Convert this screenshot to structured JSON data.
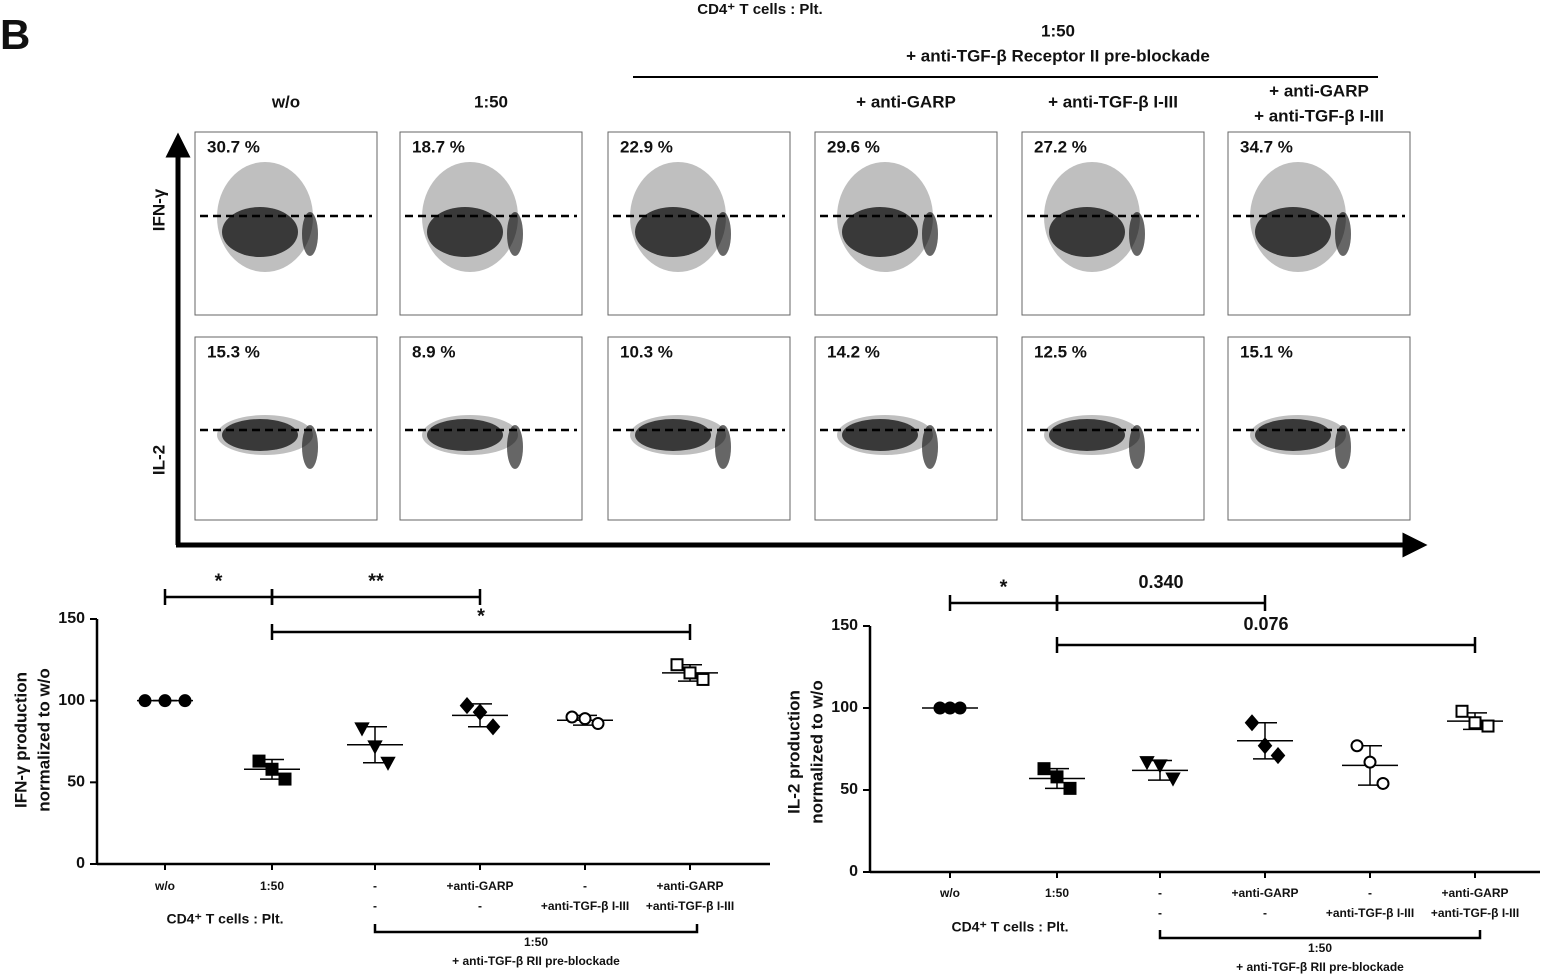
{
  "panel_label": "B",
  "flow": {
    "title": "CD4⁺ T cells : Plt.",
    "group_ratio": "1:50",
    "group_label": "+ anti-TGF-β Receptor II pre-blockade",
    "column_headers": [
      [
        "w/o"
      ],
      [
        "1:50"
      ],
      [],
      [
        "+ anti-GARP"
      ],
      [
        "+ anti-TGF-β I-III"
      ],
      [
        "+ anti-GARP",
        "+ anti-TGF-β I-III"
      ]
    ],
    "rows": [
      {
        "label": "IFN-γ",
        "percents": [
          "30.7 %",
          "18.7 %",
          "22.9 %",
          "29.6 %",
          "27.2 %",
          "34.7 %"
        ]
      },
      {
        "label": "IL-2",
        "percents": [
          "15.3 %",
          "8.9 %",
          "10.3 %",
          "14.2 %",
          "12.5 %",
          "15.1 %"
        ]
      }
    ]
  },
  "chart_data": [
    {
      "type": "dot",
      "y_label": [
        "IFN-γ production",
        "normalized to w/o"
      ],
      "ylim": [
        0,
        150
      ],
      "yticks": [
        0,
        50,
        100,
        150
      ],
      "categories": [
        "w/o",
        "1:50",
        "-",
        "+anti-GARP",
        "-",
        "+anti-GARP"
      ],
      "categories_line2": [
        null,
        null,
        "-",
        "-",
        "+anti-TGF-β I-III",
        "+anti-TGF-β I-III"
      ],
      "x_row_label": "CD4⁺ T cells : Plt.",
      "bracket_ratio": "1:50",
      "bracket_label": "+ anti-TGF-β  RII pre-blockade",
      "groups": [
        {
          "marker": "circle",
          "filled": true,
          "values": [
            100,
            100,
            100
          ],
          "mean": 100,
          "sd": 0
        },
        {
          "marker": "square",
          "filled": true,
          "values": [
            63,
            58,
            52
          ],
          "mean": 58,
          "sd": 6
        },
        {
          "marker": "triangle",
          "filled": true,
          "values": [
            83,
            72,
            62
          ],
          "mean": 73,
          "sd": 11
        },
        {
          "marker": "diamond",
          "filled": true,
          "values": [
            97,
            93,
            84
          ],
          "mean": 91,
          "sd": 7
        },
        {
          "marker": "circle",
          "filled": false,
          "values": [
            90,
            89,
            86
          ],
          "mean": 88,
          "sd": 3
        },
        {
          "marker": "square",
          "filled": false,
          "values": [
            122,
            117,
            113
          ],
          "mean": 117,
          "sd": 5
        }
      ],
      "significance": [
        {
          "from": 0,
          "to": 1,
          "label": "*"
        },
        {
          "from": 1,
          "to": 3,
          "label": "**"
        },
        {
          "from": 1,
          "to": 5,
          "label": "*"
        }
      ]
    },
    {
      "type": "dot",
      "y_label": [
        "IL-2 production",
        "normalized to w/o"
      ],
      "ylim": [
        0,
        150
      ],
      "yticks": [
        0,
        50,
        100,
        150
      ],
      "categories": [
        "w/o",
        "1:50",
        "-",
        "+anti-GARP",
        "-",
        "+anti-GARP"
      ],
      "categories_line2": [
        null,
        null,
        "-",
        "-",
        "+anti-TGF-β I-III",
        "+anti-TGF-β I-III"
      ],
      "x_row_label": "CD4⁺ T cells : Plt.",
      "bracket_ratio": "1:50",
      "bracket_label": "+ anti-TGF-β  RII pre-blockade",
      "groups": [
        {
          "marker": "circle",
          "filled": true,
          "values": [
            100,
            100,
            100
          ],
          "mean": 100,
          "sd": 0
        },
        {
          "marker": "square",
          "filled": true,
          "values": [
            63,
            58,
            51
          ],
          "mean": 57,
          "sd": 6
        },
        {
          "marker": "triangle",
          "filled": true,
          "values": [
            67,
            65,
            57
          ],
          "mean": 62,
          "sd": 6
        },
        {
          "marker": "diamond",
          "filled": true,
          "values": [
            91,
            77,
            71
          ],
          "mean": 80,
          "sd": 11
        },
        {
          "marker": "circle",
          "filled": false,
          "values": [
            77,
            67,
            54
          ],
          "mean": 65,
          "sd": 12
        },
        {
          "marker": "square",
          "filled": false,
          "values": [
            98,
            91,
            89
          ],
          "mean": 92,
          "sd": 5
        }
      ],
      "significance": [
        {
          "from": 0,
          "to": 1,
          "label": "*"
        },
        {
          "from": 1,
          "to": 3,
          "label": "0.340"
        },
        {
          "from": 1,
          "to": 5,
          "label": "0.076"
        }
      ]
    }
  ]
}
